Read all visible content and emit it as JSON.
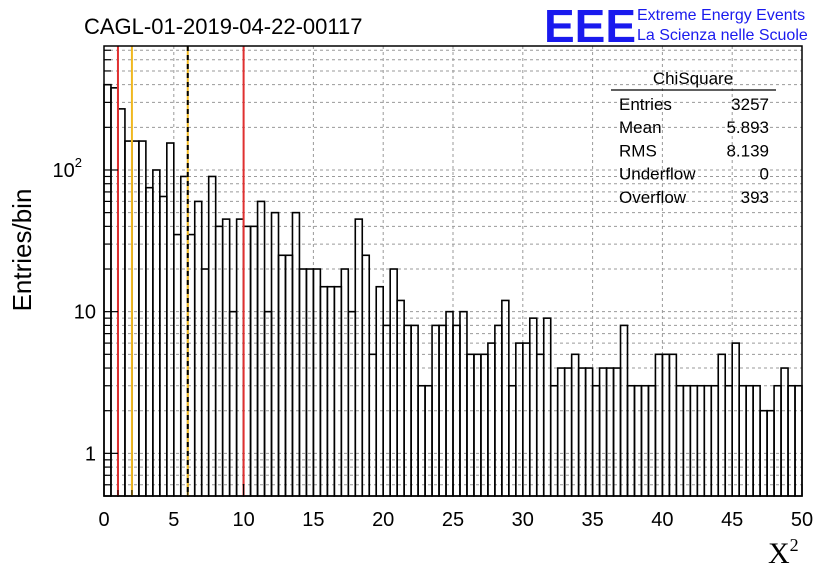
{
  "chart_data": {
    "type": "bar",
    "title": "CAGL-01-2019-04-22-00117",
    "xlabel": "X",
    "xlabel_sup": "2",
    "ylabel": "Entries/bin",
    "log_y": true,
    "xlim": [
      0,
      50
    ],
    "ylim": [
      0.5,
      750
    ],
    "grid": true,
    "bin_width": 0.5,
    "x_ticks": [
      "0",
      "5",
      "10",
      "15",
      "20",
      "25",
      "30",
      "35",
      "40",
      "45",
      "50"
    ],
    "y_ticks": [
      {
        "value": 1,
        "label": "1"
      },
      {
        "value": 10,
        "label": "10"
      },
      {
        "value": 100,
        "label": "10",
        "sup": "2"
      }
    ],
    "values": [
      400,
      380,
      270,
      160,
      160,
      160,
      75,
      100,
      65,
      155,
      35,
      90,
      35,
      60,
      20,
      90,
      40,
      45,
      10,
      45,
      40,
      40,
      60,
      10,
      50,
      25,
      25,
      50,
      20,
      20,
      20,
      15,
      15,
      15,
      20,
      10,
      45,
      25,
      5,
      15,
      8,
      20,
      12,
      8,
      8,
      3,
      3,
      8,
      8,
      10,
      8,
      10,
      5,
      5,
      5,
      6,
      8,
      12,
      3,
      6,
      6,
      9,
      5,
      9,
      3,
      4,
      4,
      5,
      4,
      4,
      3,
      4,
      4,
      4,
      8,
      3,
      3,
      3,
      3,
      5,
      5,
      5,
      3,
      3,
      3,
      3,
      3,
      3,
      5,
      3,
      6,
      3,
      3,
      3,
      2,
      2,
      3,
      4,
      3,
      3
    ],
    "vlines": [
      {
        "x": 1,
        "color": "#e03030",
        "style": "solid"
      },
      {
        "x": 2,
        "color": "#f0b820",
        "style": "solid"
      },
      {
        "x": 6,
        "color": "#f0b820",
        "style": "solid"
      },
      {
        "x": 6,
        "color": "#000000",
        "style": "dashed"
      },
      {
        "x": 10,
        "color": "#e03030",
        "style": "solid"
      }
    ],
    "stats": {
      "title": "ChiSquare",
      "rows": [
        {
          "label": "Entries",
          "value": "3257"
        },
        {
          "label": "Mean",
          "value": "5.893"
        },
        {
          "label": "RMS",
          "value": "8.139"
        },
        {
          "label": "Underflow",
          "value": "0"
        },
        {
          "label": "Overflow",
          "value": "393"
        }
      ]
    }
  },
  "logo": {
    "mark": "EEE",
    "line1": "Extreme Energy Events",
    "line2": "La Scienza nelle Scuole",
    "color": "#1a1aee"
  }
}
